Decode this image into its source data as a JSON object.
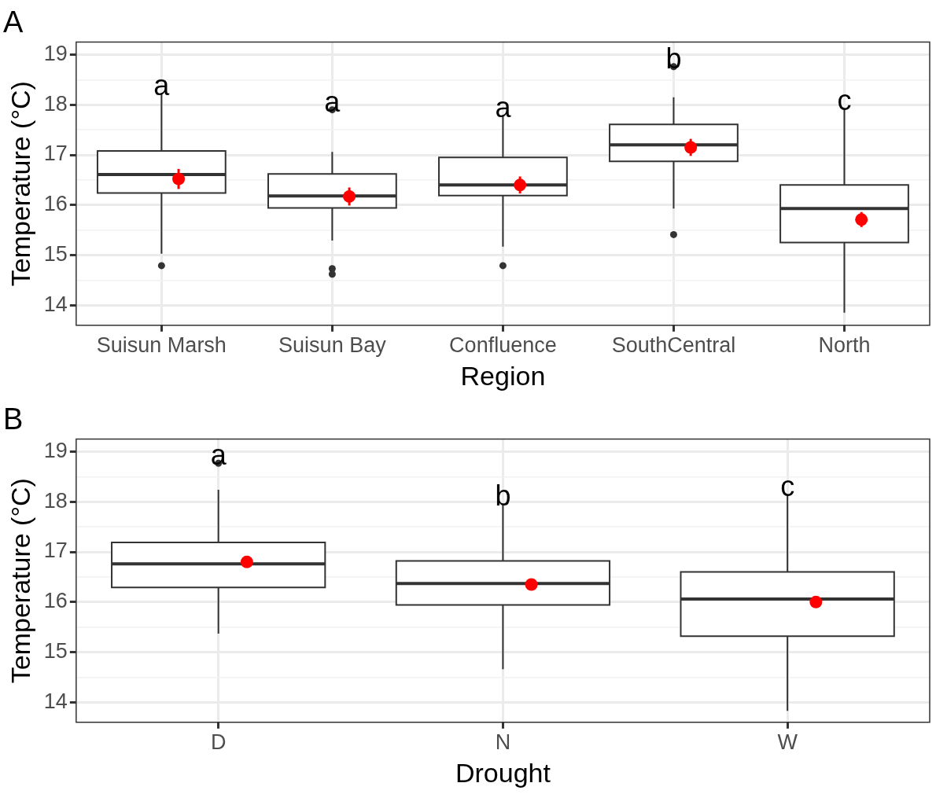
{
  "chart_data": [
    {
      "type": "box",
      "title": "A",
      "xlabel": "Region",
      "ylabel": "Temperature (°C)",
      "categories": [
        "Suisun Marsh",
        "Suisun Bay",
        "Confluence",
        "SouthCentral",
        "North"
      ],
      "boxes": [
        {
          "low": 15.03,
          "q1": 16.24,
          "median": 16.61,
          "q3": 17.08,
          "high": 18.22,
          "outliers": [
            14.79
          ]
        },
        {
          "low": 15.29,
          "q1": 15.94,
          "median": 16.18,
          "q3": 16.62,
          "high": 17.06,
          "outliers": [
            17.9,
            14.73,
            14.62
          ]
        },
        {
          "low": 15.17,
          "q1": 16.19,
          "median": 16.4,
          "q3": 16.95,
          "high": 17.79,
          "outliers": [
            14.79
          ]
        },
        {
          "low": 15.93,
          "q1": 16.87,
          "median": 17.2,
          "q3": 17.61,
          "high": 18.15,
          "outliers": [
            18.76,
            15.41
          ]
        },
        {
          "low": 13.85,
          "q1": 15.25,
          "median": 15.93,
          "q3": 16.4,
          "high": 17.93
        }
      ],
      "series": [
        {
          "type": "scatter",
          "color": "#ff0000",
          "x": [
            "Suisun Marsh",
            "Suisun Bay",
            "Confluence",
            "SouthCentral",
            "North"
          ],
          "values": [
            16.52,
            16.17,
            16.4,
            17.15,
            15.71
          ],
          "errors": [
            0.2,
            0.18,
            0.17,
            0.17,
            0.15
          ]
        }
      ],
      "ylim": [
        13.6,
        19.25
      ],
      "yticks": [
        14,
        {
          "value": 14.5,
          "label": null
        },
        15,
        {
          "value": 15.5,
          "label": null
        },
        16,
        {
          "value": 16.5,
          "label": null
        },
        17,
        {
          "value": 17.5,
          "label": null
        },
        18,
        {
          "value": 18.5,
          "label": null
        },
        19
      ],
      "grid": true,
      "legend": false,
      "annotations": [
        "a",
        "a",
        "a",
        "b",
        "c"
      ]
    },
    {
      "type": "box",
      "title": "B",
      "xlabel": "Drought",
      "ylabel": "Temperature (°C)",
      "categories": [
        "D",
        "N",
        "W"
      ],
      "boxes": [
        {
          "low": 15.37,
          "q1": 16.29,
          "median": 16.76,
          "q3": 17.19,
          "high": 18.24,
          "outliers": [
            18.77
          ]
        },
        {
          "low": 14.66,
          "q1": 15.94,
          "median": 16.37,
          "q3": 16.82,
          "high": 17.96
        },
        {
          "low": 13.83,
          "q1": 15.32,
          "median": 16.06,
          "q3": 16.6,
          "high": 18.14
        }
      ],
      "series": [
        {
          "type": "scatter",
          "color": "#ff0000",
          "x": [
            "D",
            "N",
            "W"
          ],
          "values": [
            16.8,
            16.35,
            16.0
          ],
          "errors": [
            0.05,
            0.05,
            0.07
          ]
        }
      ],
      "ylim": [
        13.6,
        19.25
      ],
      "yticks": [
        14,
        {
          "value": 14.5,
          "label": null
        },
        15,
        {
          "value": 15.5,
          "label": null
        },
        16,
        {
          "value": 16.5,
          "label": null
        },
        17,
        {
          "value": 17.5,
          "label": null
        },
        18,
        {
          "value": 18.5,
          "label": null
        },
        19
      ],
      "grid": true,
      "legend": false,
      "annotations": [
        "a",
        "b",
        "c"
      ]
    }
  ]
}
